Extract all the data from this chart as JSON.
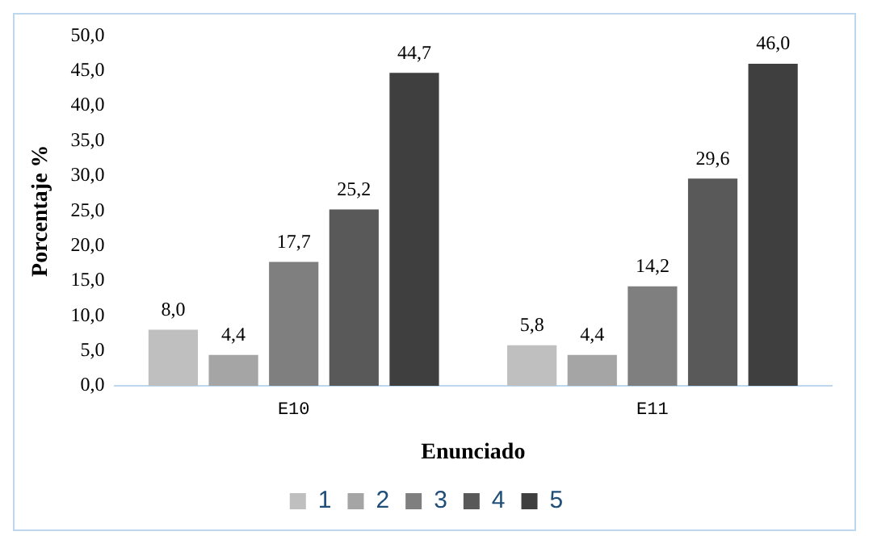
{
  "chart_data": {
    "type": "bar",
    "xlabel": "Enunciado",
    "ylabel": "Porcentaje %",
    "categories": [
      "E10",
      "E11"
    ],
    "series": [
      {
        "name": "1",
        "color": "#bfbfbf",
        "values": [
          8.0,
          5.8
        ],
        "value_labels": [
          "8,0",
          "5,8"
        ]
      },
      {
        "name": "2",
        "color": "#a5a5a5",
        "values": [
          4.4,
          4.4
        ],
        "value_labels": [
          "4,4",
          "4,4"
        ]
      },
      {
        "name": "3",
        "color": "#7f7f7f",
        "values": [
          17.7,
          14.2
        ],
        "value_labels": [
          "17,7",
          "14,2"
        ]
      },
      {
        "name": "4",
        "color": "#595959",
        "values": [
          25.2,
          29.6
        ],
        "value_labels": [
          "25,2",
          "29,6"
        ]
      },
      {
        "name": "5",
        "color": "#3f3f3f",
        "values": [
          44.7,
          46.0
        ],
        "value_labels": [
          "44,7",
          "46,0"
        ]
      }
    ],
    "ylim": [
      0,
      50
    ],
    "yticks": [
      {
        "value": 0,
        "label": "0,0"
      },
      {
        "value": 5,
        "label": "5,0"
      },
      {
        "value": 10,
        "label": "10,0"
      },
      {
        "value": 15,
        "label": "15,0"
      },
      {
        "value": 20,
        "label": "20,0"
      },
      {
        "value": 25,
        "label": "25,0"
      },
      {
        "value": 30,
        "label": "30,0"
      },
      {
        "value": 35,
        "label": "35,0"
      },
      {
        "value": 40,
        "label": "40,0"
      },
      {
        "value": 45,
        "label": "45,0"
      },
      {
        "value": 50,
        "label": "50,0"
      }
    ],
    "grid": false,
    "legend": "bottom"
  }
}
